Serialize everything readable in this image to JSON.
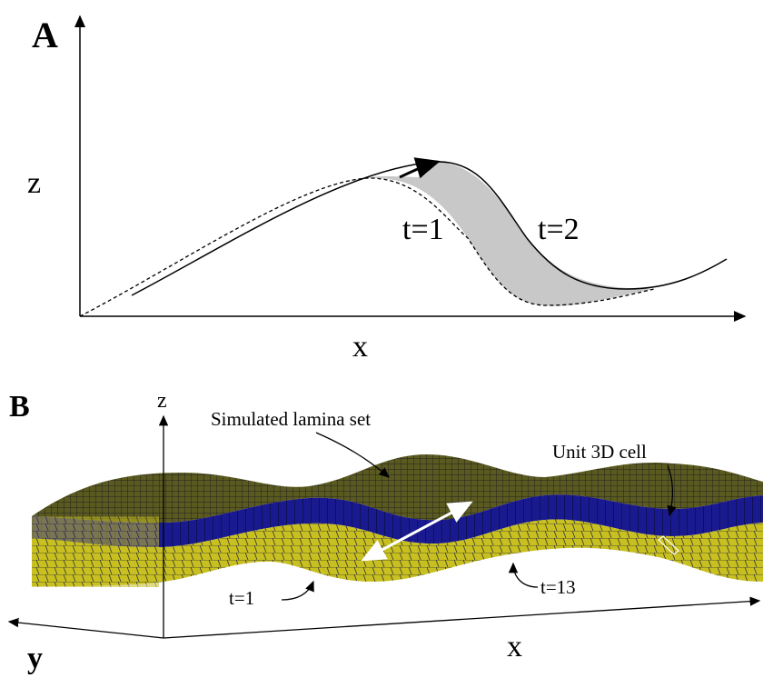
{
  "panel_a": {
    "label": "A",
    "z_axis": "z",
    "x_axis": "x",
    "curve_1": "t=1",
    "curve_2": "t=2"
  },
  "panel_b": {
    "label": "B",
    "z_axis": "z",
    "x_axis": "x",
    "y_axis": "y",
    "lamina_label": "Simulated lamina set",
    "cell_label": "Unit 3D cell",
    "time_start": "t=1",
    "time_end": "t=13"
  }
}
